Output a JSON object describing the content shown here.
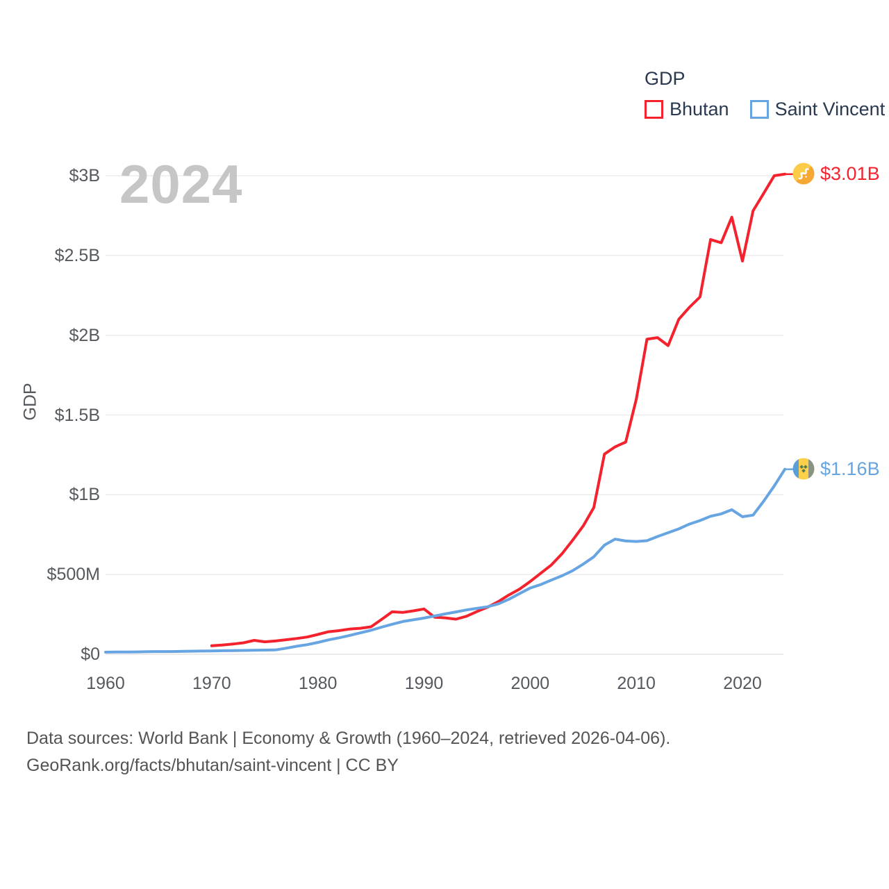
{
  "legend": {
    "title": "GDP",
    "items": [
      {
        "label": "Bhutan",
        "color": "#f3222d"
      },
      {
        "label": "Saint Vincent",
        "color": "#66a4e2"
      }
    ]
  },
  "watermark": "2024",
  "y_axis_label": "GDP",
  "end_markers": [
    {
      "label": "$3.01B",
      "color": "#f3222d",
      "icon": "bhutan-flag-icon"
    },
    {
      "label": "$1.16B",
      "color": "#66a4e2",
      "icon": "saint-vincent-flag-icon"
    }
  ],
  "footer": {
    "line1": "Data sources: World Bank | Economy & Growth (1960–2024, retrieved 2026-04-06).",
    "line2": "GeoRank.org/facts/bhutan/saint-vincent | CC BY"
  },
  "chart_data": {
    "type": "line",
    "title": "GDP",
    "ylabel": "GDP",
    "values_unit": "USD millions",
    "grid": "horizontal",
    "legend_position": "top-right",
    "xlim": [
      1960,
      2024
    ],
    "ylim": [
      0,
      3000
    ],
    "x_ticks": [
      1960,
      1970,
      1980,
      1990,
      2000,
      2010,
      2020
    ],
    "y_ticks": [
      {
        "value": 0,
        "label": "$0"
      },
      {
        "value": 500,
        "label": "$500M"
      },
      {
        "value": 1000,
        "label": "$1B"
      },
      {
        "value": 1500,
        "label": "$1.5B"
      },
      {
        "value": 2000,
        "label": "$2B"
      },
      {
        "value": 2500,
        "label": "$2.5B"
      },
      {
        "value": 3000,
        "label": "$3B"
      }
    ],
    "series": [
      {
        "name": "Bhutan",
        "color": "#f3222d",
        "final_label": "$3.01B",
        "x_start": 1970,
        "x_end": 2024,
        "values_musd": [
          53,
          58,
          64,
          72,
          87,
          78,
          83,
          91,
          99,
          108,
          124,
          141,
          148,
          158,
          163,
          172,
          218,
          266,
          262,
          272,
          284,
          232,
          228,
          220,
          238,
          268,
          295,
          330,
          372,
          408,
          456,
          508,
          560,
          630,
          715,
          805,
          920,
          1255,
          1300,
          1330,
          1600,
          1975,
          1985,
          1935,
          2100,
          2175,
          2240,
          2600,
          2580,
          2740,
          2465,
          2780,
          2890,
          3000,
          3010
        ]
      },
      {
        "name": "Saint Vincent",
        "color": "#66a4e2",
        "final_label": "$1.16B",
        "x_start": 1960,
        "x_end": 2024,
        "values_musd": [
          13,
          14,
          14,
          15,
          16,
          17,
          17,
          18,
          19,
          20,
          21,
          22,
          23,
          24,
          25,
          26,
          27,
          38,
          50,
          60,
          74,
          90,
          103,
          118,
          134,
          150,
          170,
          188,
          205,
          216,
          227,
          240,
          253,
          265,
          278,
          288,
          298,
          316,
          345,
          380,
          415,
          437,
          465,
          492,
          524,
          565,
          611,
          684,
          722,
          710,
          707,
          712,
          738,
          762,
          786,
          816,
          838,
          865,
          880,
          906,
          862,
          872,
          960,
          1055,
          1160
        ]
      }
    ]
  }
}
